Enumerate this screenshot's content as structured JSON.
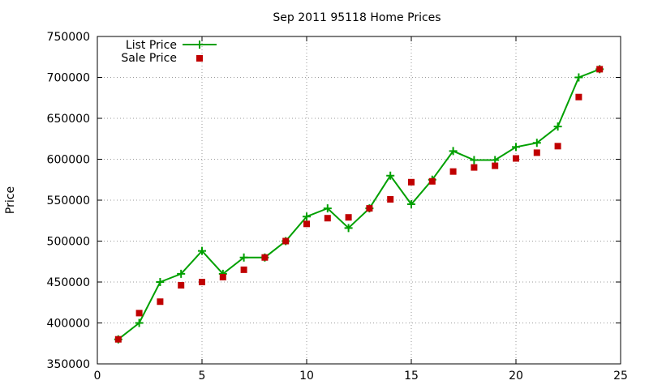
{
  "chart_data": {
    "type": "line",
    "title": "Sep 2011 95118 Home Prices",
    "xlabel": "",
    "ylabel": "Price",
    "xlim": [
      0,
      25
    ],
    "ylim": [
      350000,
      750000
    ],
    "x_ticks": [
      "0",
      "5",
      "10",
      "15",
      "20",
      "25"
    ],
    "y_ticks": [
      "350000",
      "400000",
      "450000",
      "500000",
      "550000",
      "600000",
      "650000",
      "700000",
      "750000"
    ],
    "x_tick_values": [
      0,
      5,
      10,
      15,
      20,
      25
    ],
    "y_tick_values": [
      350000,
      400000,
      450000,
      500000,
      550000,
      600000,
      650000,
      700000,
      750000
    ],
    "grid": true,
    "legend_position": "top-left",
    "x": [
      1,
      2,
      3,
      4,
      5,
      6,
      7,
      8,
      9,
      10,
      11,
      12,
      13,
      14,
      15,
      16,
      17,
      18,
      19,
      20,
      21,
      22,
      23,
      24
    ],
    "series": [
      {
        "name": "List Price",
        "style": "line-with-plus",
        "color": "#00a000",
        "values": [
          380000,
          400000,
          450000,
          460000,
          488000,
          460000,
          480000,
          480000,
          500000,
          530000,
          540000,
          516000,
          540000,
          580000,
          545000,
          575000,
          610000,
          599000,
          599000,
          615000,
          620000,
          640000,
          700000,
          710000
        ]
      },
      {
        "name": "Sale Price",
        "style": "square-points",
        "color": "#c00000",
        "values": [
          380000,
          412000,
          426000,
          446000,
          450000,
          456000,
          465000,
          480000,
          500000,
          521000,
          528000,
          529000,
          540000,
          551000,
          572000,
          573000,
          585000,
          590000,
          592000,
          601000,
          608000,
          616000,
          676000,
          710000
        ]
      }
    ]
  }
}
